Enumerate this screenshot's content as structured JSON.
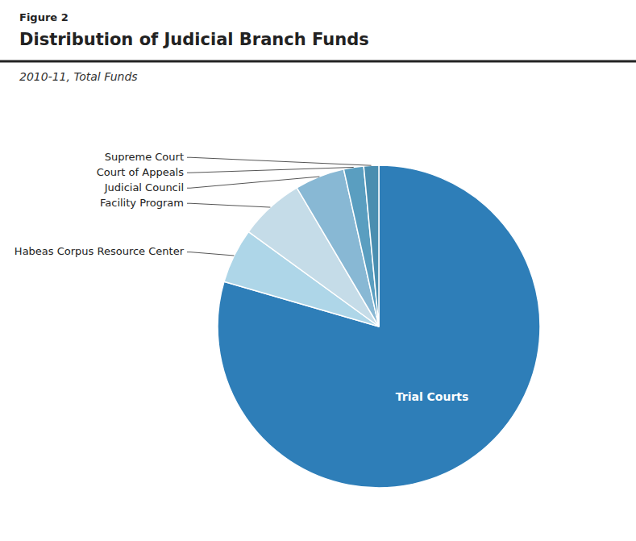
{
  "chart_data": {
    "type": "pie",
    "title_label": "Figure 2",
    "title": "Distribution of Judicial Branch Funds",
    "subtitle": "2010-11, Total Funds",
    "categories": [
      "Trial Courts",
      "Habeas Corpus Resource Center",
      "Facility Program",
      "Judicial Council",
      "Court of Appeals",
      "Supreme Court"
    ],
    "values": [
      79.5,
      5.5,
      6.5,
      5.0,
      2.0,
      1.5
    ],
    "colors": [
      "#2E7EB8",
      "#AED6E8",
      "#C5DCE8",
      "#88B8D4",
      "#5A9EC0",
      "#4A8EB0"
    ]
  }
}
